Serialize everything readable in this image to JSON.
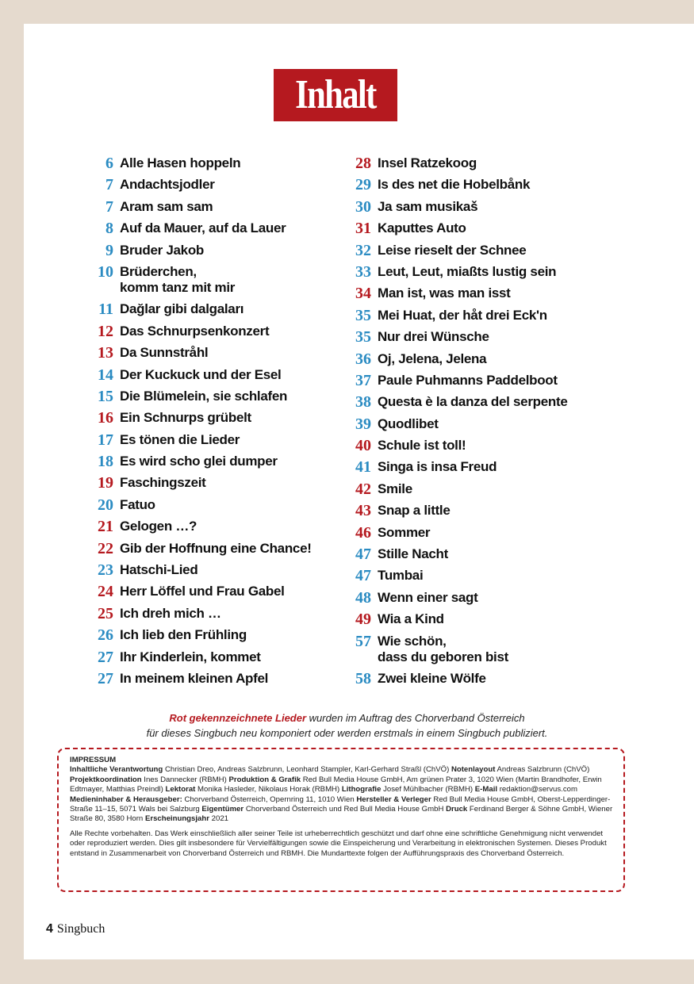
{
  "header": {
    "title": "Inhalt"
  },
  "colors": {
    "accent_red": "#b5191f",
    "number_blue": "#2a8bc2",
    "background": "#e5dace"
  },
  "toc_left": [
    {
      "page": "6",
      "title": "Alle Hasen hoppeln",
      "color": "blue"
    },
    {
      "page": "7",
      "title": "Andachtsjodler",
      "color": "blue"
    },
    {
      "page": "7",
      "title": "Aram sam sam",
      "color": "blue"
    },
    {
      "page": "8",
      "title": "Auf da Mauer, auf da Lauer",
      "color": "blue"
    },
    {
      "page": "9",
      "title": "Bruder Jakob",
      "color": "blue"
    },
    {
      "page": "10",
      "title": "Brüderchen,\nkomm tanz mit mir",
      "color": "blue"
    },
    {
      "page": "11",
      "title": "Dağlar gibi dalgaları",
      "color": "blue"
    },
    {
      "page": "12",
      "title": "Das Schnurpsenkonzert",
      "color": "red"
    },
    {
      "page": "13",
      "title": "Da Sunnstråhl",
      "color": "red"
    },
    {
      "page": "14",
      "title": "Der Kuckuck und der Esel",
      "color": "blue"
    },
    {
      "page": "15",
      "title": "Die Blümelein, sie schlafen",
      "color": "blue"
    },
    {
      "page": "16",
      "title": "Ein Schnurps grübelt",
      "color": "red"
    },
    {
      "page": "17",
      "title": "Es tönen die Lieder",
      "color": "blue"
    },
    {
      "page": "18",
      "title": "Es wird scho glei dumper",
      "color": "blue"
    },
    {
      "page": "19",
      "title": "Faschingszeit",
      "color": "red"
    },
    {
      "page": "20",
      "title": "Fatuo",
      "color": "blue"
    },
    {
      "page": "21",
      "title": "Gelogen …?",
      "color": "red"
    },
    {
      "page": "22",
      "title": "Gib der Hoffnung eine Chance!",
      "color": "red"
    },
    {
      "page": "23",
      "title": "Hatschi-Lied",
      "color": "blue"
    },
    {
      "page": "24",
      "title": "Herr Löffel und Frau Gabel",
      "color": "red"
    },
    {
      "page": "25",
      "title": "Ich dreh mich …",
      "color": "red"
    },
    {
      "page": "26",
      "title": "Ich lieb den Frühling",
      "color": "blue"
    },
    {
      "page": "27",
      "title": "Ihr Kinderlein, kommet",
      "color": "blue"
    },
    {
      "page": "27",
      "title": "In meinem kleinen Apfel",
      "color": "blue"
    }
  ],
  "toc_right": [
    {
      "page": "28",
      "title": "Insel Ratzekoog",
      "color": "red"
    },
    {
      "page": "29",
      "title": "Is des net die Hobelbånk",
      "color": "blue"
    },
    {
      "page": "30",
      "title": "Ja sam musikaš",
      "color": "blue"
    },
    {
      "page": "31",
      "title": "Kaputtes Auto",
      "color": "red"
    },
    {
      "page": "32",
      "title": "Leise rieselt der Schnee",
      "color": "blue"
    },
    {
      "page": "33",
      "title": "Leut, Leut, miaßts lustig sein",
      "color": "blue"
    },
    {
      "page": "34",
      "title": "Man ist, was man isst",
      "color": "red"
    },
    {
      "page": "35",
      "title": "Mei Huat, der håt drei Eck'n",
      "color": "blue"
    },
    {
      "page": "35",
      "title": "Nur drei Wünsche",
      "color": "blue"
    },
    {
      "page": "36",
      "title": "Oj, Jelena, Jelena",
      "color": "blue"
    },
    {
      "page": "37",
      "title": "Paule Puhmanns Paddelboot",
      "color": "blue"
    },
    {
      "page": "38",
      "title": "Questa è la danza del serpente",
      "color": "blue"
    },
    {
      "page": "39",
      "title": "Quodlibet",
      "color": "blue"
    },
    {
      "page": "40",
      "title": "Schule ist toll!",
      "color": "red"
    },
    {
      "page": "41",
      "title": "Singa is insa Freud",
      "color": "blue"
    },
    {
      "page": "42",
      "title": "Smile",
      "color": "red"
    },
    {
      "page": "43",
      "title": "Snap a little",
      "color": "red"
    },
    {
      "page": "46",
      "title": "Sommer",
      "color": "red"
    },
    {
      "page": "47",
      "title": "Stille Nacht",
      "color": "blue"
    },
    {
      "page": "47",
      "title": "Tumbai",
      "color": "blue"
    },
    {
      "page": "48",
      "title": "Wenn einer sagt",
      "color": "blue"
    },
    {
      "page": "49",
      "title": "Wia a Kind",
      "color": "red"
    },
    {
      "page": "57",
      "title": "Wie schön,\ndass du geboren bist",
      "color": "blue"
    },
    {
      "page": "58",
      "title": "Zwei kleine Wölfe",
      "color": "blue"
    }
  ],
  "note": {
    "highlight": "Rot gekennzeichnete Lieder",
    "line1_rest": " wurden im Auftrag des Chorverband Österreich",
    "line2": "für dieses Singbuch neu komponiert oder werden erstmals in einem Singbuch publiziert."
  },
  "impressum": {
    "heading": "IMPRESSUM",
    "entries": [
      {
        "label": "Inhaltliche Verantwortung",
        "text": " Christian Dreo, Andreas Salzbrunn, Leonhard Stampler, Karl-Gerhard Straßl (ChVÖ) "
      },
      {
        "label": "Notenlayout",
        "text": " Andreas Salzbrunn (ChVÖ) "
      },
      {
        "label": "Projektkoordination",
        "text": " Ines Dannecker (RBMH) "
      },
      {
        "label": "Produktion & Grafik",
        "text": " Red Bull Media House GmbH, Am grünen Prater 3, 1020 Wien (Martin Brandhofer, Erwin Edtmayer, Matthias Preindl) "
      },
      {
        "label": "Lektorat",
        "text": " Monika Hasleder, Nikolaus Horak (RBMH) "
      },
      {
        "label": "Lithografie",
        "text": " Josef Mühlbacher (RBMH) "
      },
      {
        "label": "E-Mail",
        "text": " redaktion@servus.com "
      },
      {
        "label": "Medieninhaber & Herausgeber:",
        "text": " Chorverband Österreich, Opernring 11, 1010 Wien "
      },
      {
        "label": "Hersteller & Verleger",
        "text": " Red Bull Media House GmbH, Oberst-Lepperdinger-Straße 11–15, 5071 Wals bei Salzburg "
      },
      {
        "label": "Eigentümer",
        "text": " Chorverband Österreich und Red Bull Media House GmbH "
      },
      {
        "label": "Druck",
        "text": " Ferdinand Berger & Söhne GmbH, Wiener Straße 80, 3580 Horn "
      },
      {
        "label": "Erscheinungsjahr",
        "text": " 2021"
      }
    ],
    "rights": "Alle Rechte vorbehalten. Das Werk einschließlich aller seiner Teile ist urheberrechtlich geschützt und darf ohne eine schriftliche Genehmigung nicht verwendet oder reproduziert werden. Dies gilt insbesondere für Vervielfältigungen sowie die Einspeicherung und Verarbeitung in elektronischen Systemen. Dieses Produkt entstand in Zusammenarbeit von Chorverband Österreich und RBMH. Die Mundarttexte folgen der Aufführungspraxis des Chorverband Österreich."
  },
  "footer": {
    "page_number": "4",
    "book": "Singbuch"
  }
}
